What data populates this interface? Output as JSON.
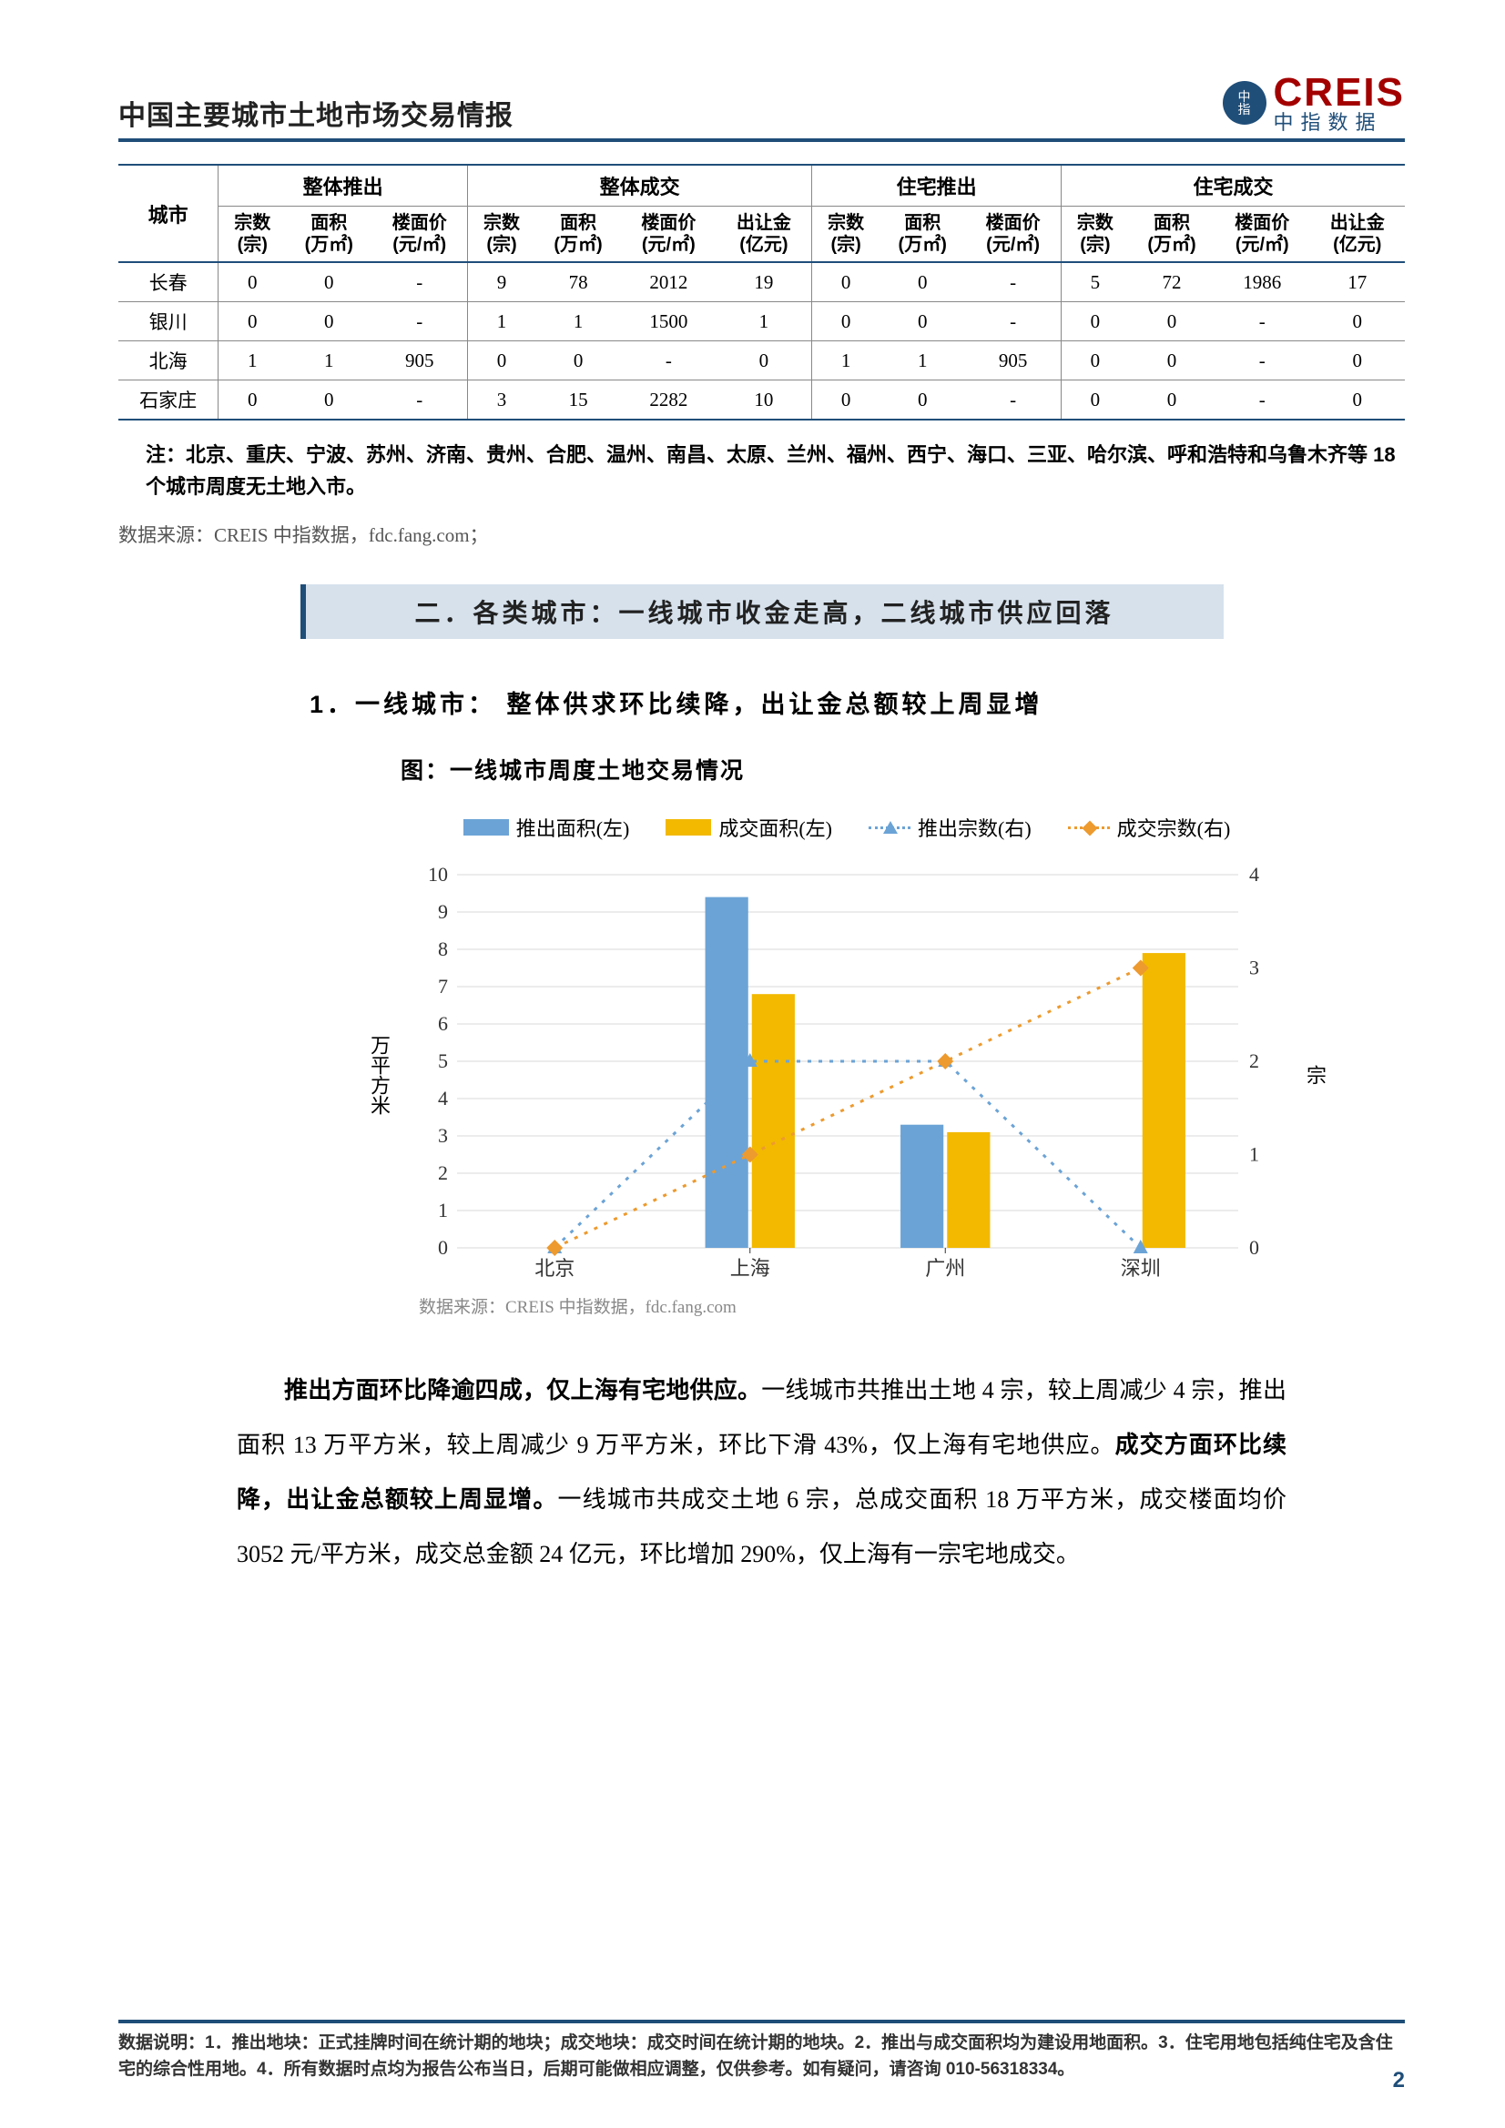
{
  "header": {
    "title": "中国主要城市土地市场交易情报",
    "logo_en": "CREIS",
    "logo_cn": "中指数据",
    "logo_badge_top": "中",
    "logo_badge_bot": "指"
  },
  "table": {
    "col_city": "城市",
    "group_headers": [
      "整体推出",
      "整体成交",
      "住宅推出",
      "住宅成交"
    ],
    "sub_headers": {
      "zs": "宗数\n(宗)",
      "mj": "面积\n(万㎡)",
      "lmj": "楼面价\n(元/㎡)",
      "crj": "出让金\n(亿元)"
    },
    "rows": [
      {
        "city": "长春",
        "v": [
          "0",
          "0",
          "-",
          "9",
          "78",
          "2012",
          "19",
          "0",
          "0",
          "-",
          "5",
          "72",
          "1986",
          "17"
        ]
      },
      {
        "city": "银川",
        "v": [
          "0",
          "0",
          "-",
          "1",
          "1",
          "1500",
          "1",
          "0",
          "0",
          "-",
          "0",
          "0",
          "-",
          "0"
        ]
      },
      {
        "city": "北海",
        "v": [
          "1",
          "1",
          "905",
          "0",
          "0",
          "-",
          "0",
          "1",
          "1",
          "905",
          "0",
          "0",
          "-",
          "0"
        ]
      },
      {
        "city": "石家庄",
        "v": [
          "0",
          "0",
          "-",
          "3",
          "15",
          "2282",
          "10",
          "0",
          "0",
          "-",
          "0",
          "0",
          "-",
          "0"
        ]
      }
    ],
    "note": "注：北京、重庆、宁波、苏州、济南、贵州、合肥、温州、南昌、太原、兰州、福州、西宁、海口、三亚、哈尔滨、呼和浩特和乌鲁木齐等 18 个城市周度无土地入市。",
    "source": "数据来源：CREIS 中指数据，fdc.fang.com；"
  },
  "section": {
    "heading": "二．各类城市：一线城市收金走高，二线城市供应回落",
    "sub": "1．一线城市： 整体供求环比续降，出让金总额较上周显增",
    "chart_title": "图：一线城市周度土地交易情况"
  },
  "chart": {
    "type": "bar+line-dual-axis",
    "categories": [
      "北京",
      "上海",
      "广州",
      "深圳"
    ],
    "series": {
      "bar_launch": {
        "label": "推出面积(左)",
        "color": "#6ba3d6",
        "values": [
          0,
          9.4,
          3.3,
          0
        ]
      },
      "bar_deal": {
        "label": "成交面积(左)",
        "color": "#f2b900",
        "values": [
          0,
          6.8,
          3.1,
          7.9
        ]
      },
      "line_launch": {
        "label": "推出宗数(右)",
        "color": "#6ba3d6",
        "marker": "triangle",
        "values": [
          0,
          2,
          2,
          0
        ]
      },
      "line_deal": {
        "label": "成交宗数(右)",
        "color": "#ed9a2e",
        "marker": "diamond",
        "values": [
          0,
          1,
          2,
          3
        ]
      }
    },
    "yleft": {
      "label": "万平方米",
      "min": 0,
      "max": 10,
      "step": 1
    },
    "yright": {
      "label": "宗",
      "min": 0,
      "max": 4,
      "step": 1
    },
    "grid_color": "#d9d9d9",
    "label_fontsize": 22,
    "source": "数据来源：CREIS 中指数据，fdc.fang.com"
  },
  "paragraph": {
    "b1": "推出方面环比降逾四成，仅上海有宅地供应。",
    "t1": "一线城市共推出土地 4 宗，较上周减少 4 宗，推出面积 13 万平方米，较上周减少 9 万平方米，环比下滑 43%，仅上海有宅地供应。",
    "b2": "成交方面环比续降，出让金总额较上周显增。",
    "t2": "一线城市共成交土地 6 宗，总成交面积 18 万平方米，成交楼面均价 3052 元/平方米，成交总金额 24 亿元，环比增加 290%，仅上海有一宗宅地成交。"
  },
  "footer": {
    "note": "数据说明：1．推出地块：正式挂牌时间在统计期的地块；成交地块：成交时间在统计期的地块。2．推出与成交面积均为建设用地面积。3．住宅用地包括纯住宅及含住宅的综合性用地。4．所有数据时点均为报告公布当日，后期可能做相应调整，仅供参考。如有疑问，请咨询 010-56318334。",
    "page": "2"
  }
}
